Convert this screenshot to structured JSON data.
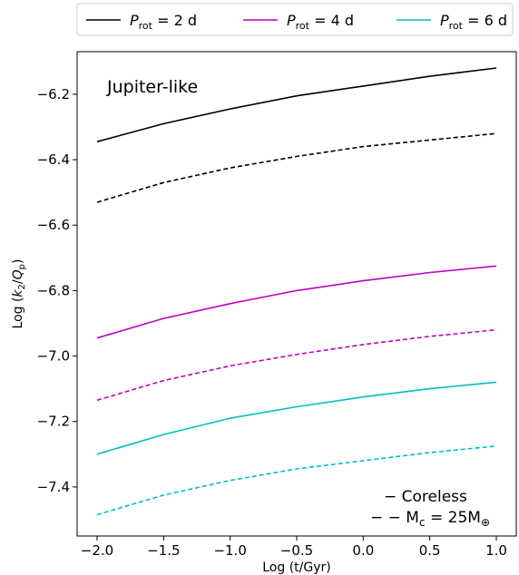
{
  "chart_data": {
    "type": "line",
    "xlabel": "Log (t/Gyr)",
    "ylabel": "Log (k2/Qp)",
    "annotation": "Jupiter-like",
    "xlim": [
      -2.15,
      1.15
    ],
    "ylim": [
      -7.55,
      -6.07
    ],
    "xticks": [
      -2.0,
      -1.5,
      -1.0,
      -0.5,
      0.0,
      0.5,
      1.0
    ],
    "xtick_labels": [
      "−2.0",
      "−1.5",
      "−1.0",
      "−0.5",
      "0.0",
      "0.5",
      "1.0"
    ],
    "yticks": [
      -6.2,
      -6.4,
      -6.6,
      -6.8,
      -7.0,
      -7.2,
      -7.4
    ],
    "ytick_labels": [
      "−6.2",
      "−6.4",
      "−6.6",
      "−6.8",
      "−7.0",
      "−7.2",
      "−7.4"
    ],
    "legend_placement": "top, outside, horizontal",
    "legend": [
      {
        "prefix": "P",
        "sub": "rot",
        "suffix": " = 2 d",
        "color": "#000000"
      },
      {
        "prefix": "P",
        "sub": "rot",
        "suffix": " = 4 d",
        "color": "#c000c0"
      },
      {
        "prefix": "P",
        "sub": "rot",
        "suffix": " = 6 d",
        "color": "#00bfbf"
      }
    ],
    "style_legend": {
      "solid": "− Coreless",
      "dashed_prefix": "− − M",
      "dashed_sub": "c",
      "dashed_suffix": " = 25M",
      "dashed_sub2": "⊕"
    },
    "x": [
      -2.0,
      -1.5,
      -1.0,
      -0.5,
      0.0,
      0.5,
      1.0
    ],
    "series": [
      {
        "color": "#000000",
        "dash": "solid",
        "values": [
          -6.345,
          -6.29,
          -6.245,
          -6.205,
          -6.175,
          -6.145,
          -6.12
        ]
      },
      {
        "color": "#000000",
        "dash": "dashed",
        "values": [
          -6.53,
          -6.47,
          -6.425,
          -6.39,
          -6.36,
          -6.34,
          -6.32
        ]
      },
      {
        "color": "#c000c0",
        "dash": "solid",
        "values": [
          -6.945,
          -6.885,
          -6.84,
          -6.8,
          -6.77,
          -6.745,
          -6.725
        ]
      },
      {
        "color": "#c000c0",
        "dash": "dashed",
        "values": [
          -7.135,
          -7.075,
          -7.03,
          -6.995,
          -6.965,
          -6.94,
          -6.92
        ]
      },
      {
        "color": "#00bfbf",
        "dash": "solid",
        "values": [
          -7.3,
          -7.24,
          -7.19,
          -7.155,
          -7.125,
          -7.1,
          -7.08
        ]
      },
      {
        "color": "#00bfbf",
        "dash": "dashed",
        "values": [
          -7.485,
          -7.425,
          -7.38,
          -7.345,
          -7.32,
          -7.295,
          -7.275
        ]
      }
    ]
  }
}
